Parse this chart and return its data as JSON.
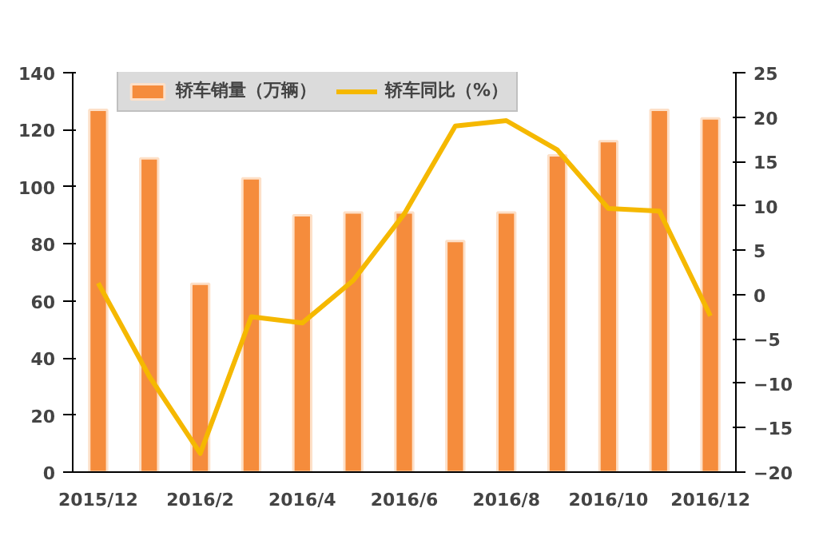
{
  "chart_data": {
    "type": "bar",
    "categories": [
      "2015/12",
      null,
      "2016/2",
      null,
      "2016/4",
      null,
      "2016/6",
      null,
      "2016/8",
      null,
      "2016/10",
      null,
      "2016/12"
    ],
    "series": [
      {
        "name": "轿车销量（万辆）",
        "color": "#f58c3c",
        "values": [
          127,
          110,
          66,
          103,
          90,
          91,
          91,
          81,
          91,
          111,
          116,
          127,
          124
        ]
      },
      {
        "name": "轿车同比（%）",
        "type": "line",
        "axis": "y2",
        "color": "#f5b800",
        "values": [
          1.3,
          -9.2,
          -17.9,
          -2.5,
          -3.2,
          1.6,
          9.1,
          19.0,
          19.6,
          16.3,
          9.7,
          9.4,
          -2.4
        ]
      }
    ],
    "ylim": [
      0,
      140
    ],
    "yticks": [
      0,
      20,
      40,
      60,
      80,
      100,
      120,
      140
    ],
    "y2lim": [
      -20,
      25
    ],
    "y2ticks": [
      -20,
      -15,
      -10,
      -5,
      0,
      5,
      10,
      15,
      20,
      25
    ],
    "grid": false,
    "legend": "top left",
    "line_style": "solid",
    "marker": "none"
  }
}
